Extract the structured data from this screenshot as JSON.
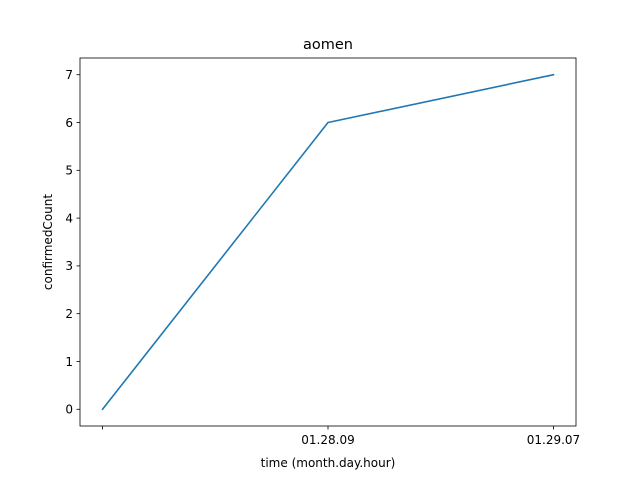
{
  "chart_data": {
    "type": "line",
    "title": "aomen",
    "xlabel": "time (month.day.hour)",
    "ylabel": "confirmedCount",
    "categories": [
      "",
      "01.28.09",
      "01.29.07"
    ],
    "series": [
      {
        "values": [
          0,
          6,
          7
        ],
        "color": "#1f77b4"
      }
    ],
    "ylim": [
      -0.35,
      7.35
    ],
    "yticks": [
      0,
      1,
      2,
      3,
      4,
      5,
      6,
      7
    ],
    "grid": false,
    "legend": "none"
  }
}
